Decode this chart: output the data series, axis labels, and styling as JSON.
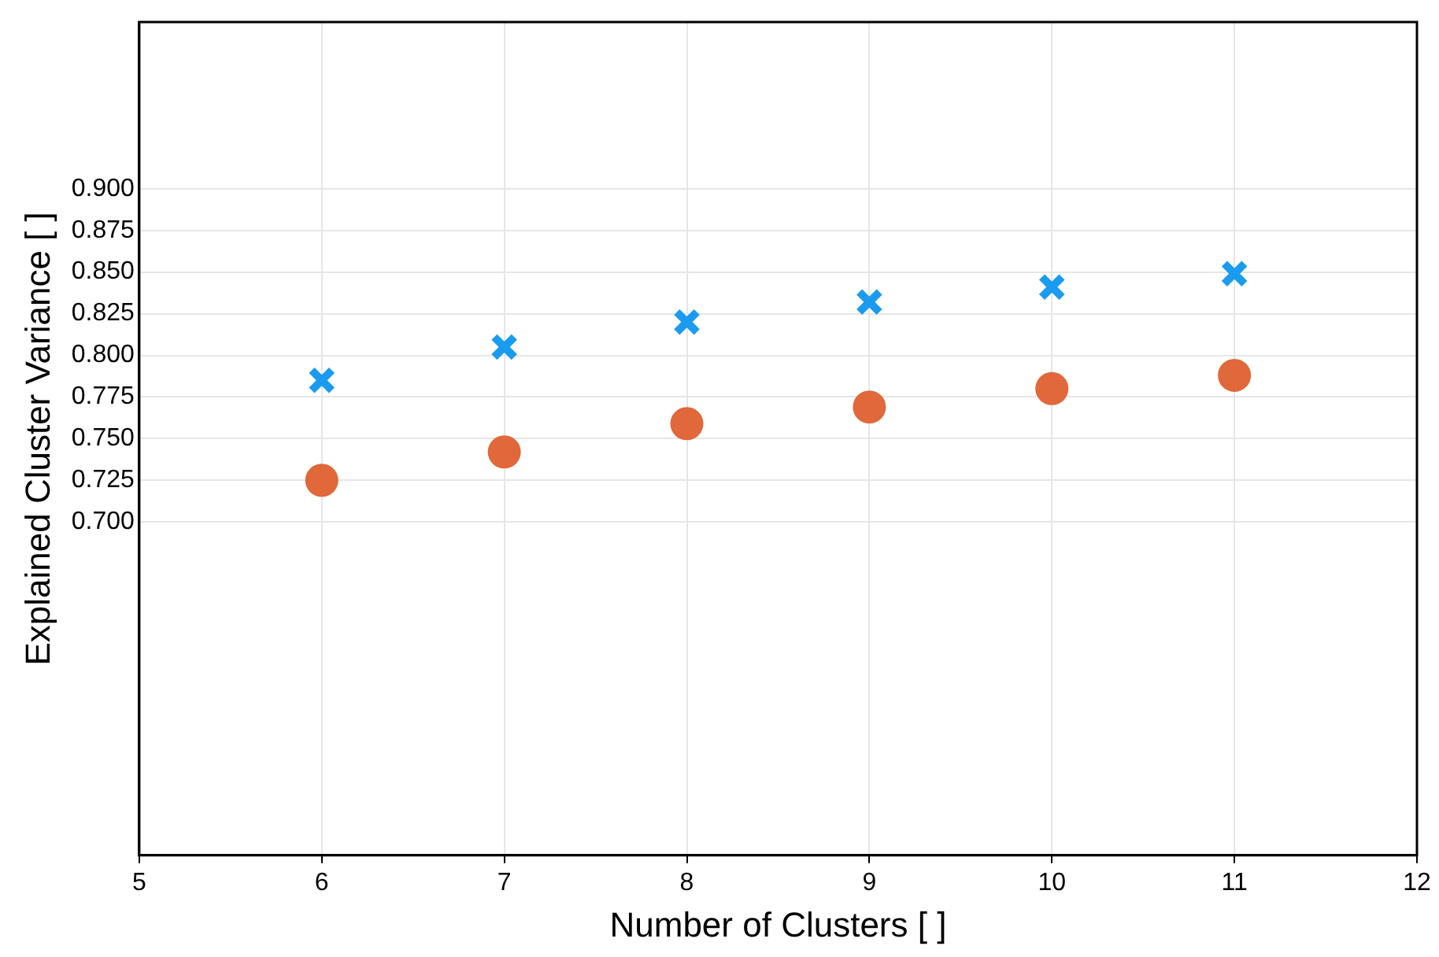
{
  "chart_data": {
    "type": "scatter",
    "xlabel": "Number of Clusters [ ]",
    "ylabel": "Explained Cluster Variance [ ]",
    "x": [
      6,
      7,
      8,
      9,
      10,
      11
    ],
    "series": [
      {
        "color": "#1a9bef",
        "marker": "cross",
        "values": [
          0.785,
          0.805,
          0.82,
          0.832,
          0.841,
          0.849
        ]
      },
      {
        "color": "#e0683a",
        "marker": "circle",
        "values": [
          0.725,
          0.742,
          0.759,
          0.769,
          0.78,
          0.788
        ]
      }
    ],
    "xlim": [
      5,
      12
    ],
    "xticks": [
      5,
      6,
      7,
      8,
      9,
      10,
      11,
      12
    ],
    "ylim": [
      0.5,
      1.0
    ],
    "yticks": [
      {
        "value": 0.7,
        "label": "0.700"
      },
      {
        "value": 0.725,
        "label": "0.725"
      },
      {
        "value": 0.75,
        "label": "0.750"
      },
      {
        "value": 0.775,
        "label": "0.775"
      },
      {
        "value": 0.8,
        "label": "0.800"
      },
      {
        "value": 0.825,
        "label": "0.825"
      },
      {
        "value": 0.85,
        "label": "0.850"
      },
      {
        "value": 0.875,
        "label": "0.875"
      },
      {
        "value": 0.9,
        "label": "0.900"
      }
    ],
    "grid": true,
    "legend": false
  }
}
